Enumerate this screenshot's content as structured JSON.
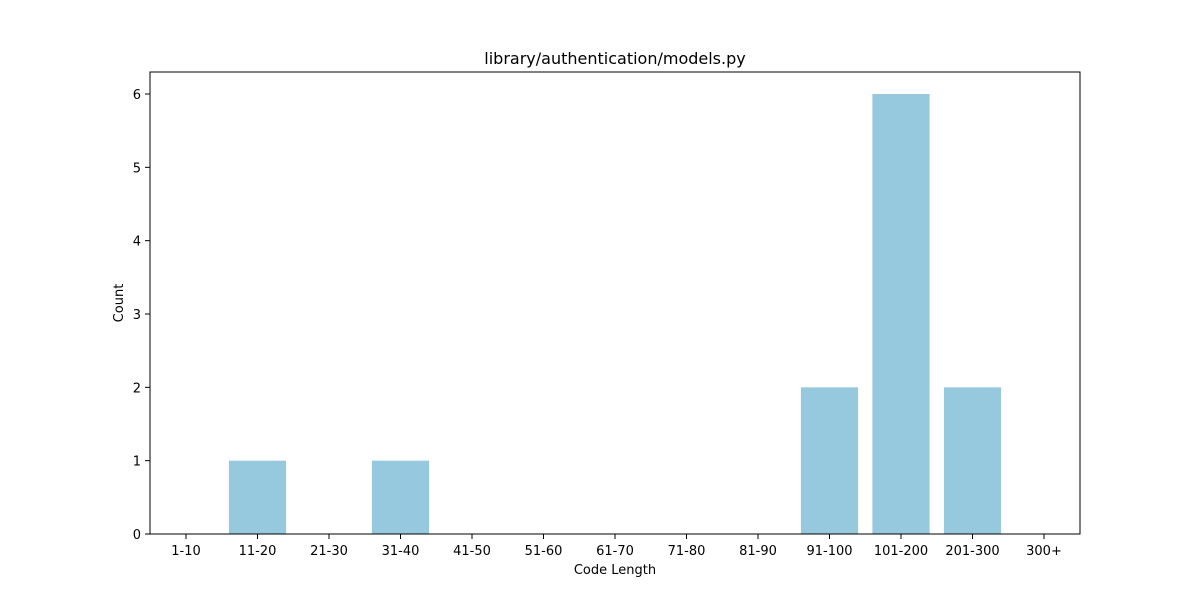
{
  "chart_data": {
    "type": "bar",
    "title": "library/authentication/models.py",
    "xlabel": "Code Length",
    "ylabel": "Count",
    "categories": [
      "1-10",
      "11-20",
      "21-30",
      "31-40",
      "41-50",
      "51-60",
      "61-70",
      "71-80",
      "81-90",
      "91-100",
      "101-200",
      "201-300",
      "300+"
    ],
    "values": [
      0,
      1,
      0,
      1,
      0,
      0,
      0,
      0,
      0,
      2,
      6,
      2,
      0
    ],
    "ylim": [
      0,
      6.3
    ],
    "yticks": [
      0,
      1,
      2,
      3,
      4,
      5,
      6
    ],
    "bar_color": "#96c9dd",
    "grid": false,
    "legend": "none"
  }
}
